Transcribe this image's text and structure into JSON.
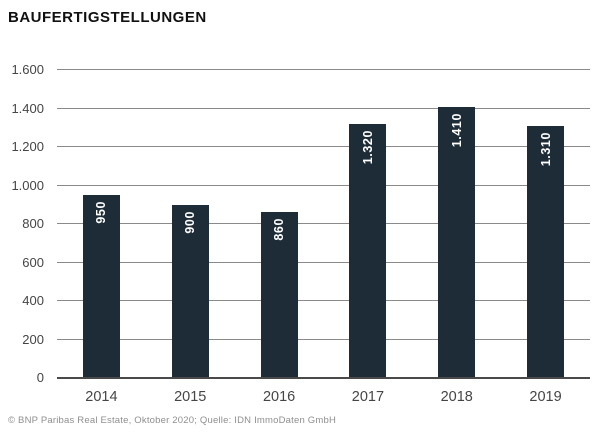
{
  "title": "BAUFERTIGSTELLUNGEN",
  "footer": "© BNP Paribas Real Estate, Oktober 2020; Quelle: IDN ImmoDaten GmbH",
  "colors": {
    "bar": "#1e2c38",
    "grid": "#8a8a8a",
    "baseline": "#4a4a4a",
    "axis_text": "#454545",
    "title_text": "#111111",
    "footer_text": "#8f8f8f",
    "label_on_bar": "#ffffff"
  },
  "chart_data": {
    "type": "bar",
    "title": "BAUFERTIGSTELLUNGEN",
    "categories": [
      "2014",
      "2015",
      "2016",
      "2017",
      "2018",
      "2019"
    ],
    "values": [
      950,
      900,
      860,
      1320,
      1410,
      1310
    ],
    "bar_labels": [
      "950",
      "900",
      "860",
      "1.320",
      "1.410",
      "1.310"
    ],
    "xlabel": "",
    "ylabel": "",
    "ylim": [
      0,
      1600
    ],
    "ytick_interval": 200,
    "ytick_labels": [
      "0",
      "200",
      "400",
      "600",
      "800",
      "1.000",
      "1.200",
      "1.400",
      "1.600"
    ],
    "grid": "horizontal",
    "legend": "none",
    "bar_label_rotation": -90,
    "bar_label_position": "inside-top"
  }
}
